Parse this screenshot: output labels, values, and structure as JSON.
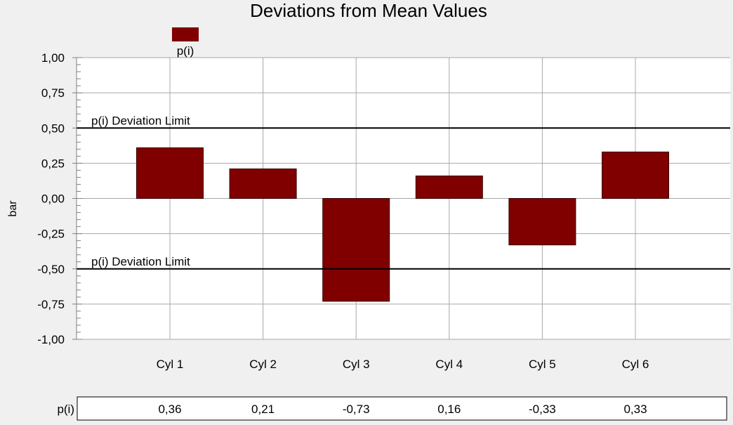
{
  "chart_data": {
    "type": "bar",
    "title": "Deviations from Mean Values",
    "ylabel": "bar",
    "xlabel": "",
    "categories": [
      "Cyl 1",
      "Cyl 2",
      "Cyl 3",
      "Cyl 4",
      "Cyl 5",
      "Cyl 6"
    ],
    "series": [
      {
        "name": "p(i)",
        "values": [
          0.36,
          0.21,
          -0.73,
          0.16,
          -0.33,
          0.33
        ],
        "color": "#800000"
      }
    ],
    "ylim": [
      -1.0,
      1.0
    ],
    "yticks": [
      "1,00",
      "0,75",
      "0,50",
      "0,25",
      "0,00",
      "-0,25",
      "-0,50",
      "-0,75",
      "-1,00"
    ],
    "grid": true,
    "legend": {
      "position": "top-left",
      "label": "p(i)"
    },
    "limits": [
      {
        "label": "p(i) Deviation Limit",
        "value": 0.5
      },
      {
        "label": "p(i) Deviation Limit",
        "value": -0.5
      }
    ],
    "table": {
      "row_label": "p(i)",
      "values": [
        "0,36",
        "0,21",
        "-0,73",
        "0,16",
        "-0,33",
        "0,33"
      ]
    }
  }
}
